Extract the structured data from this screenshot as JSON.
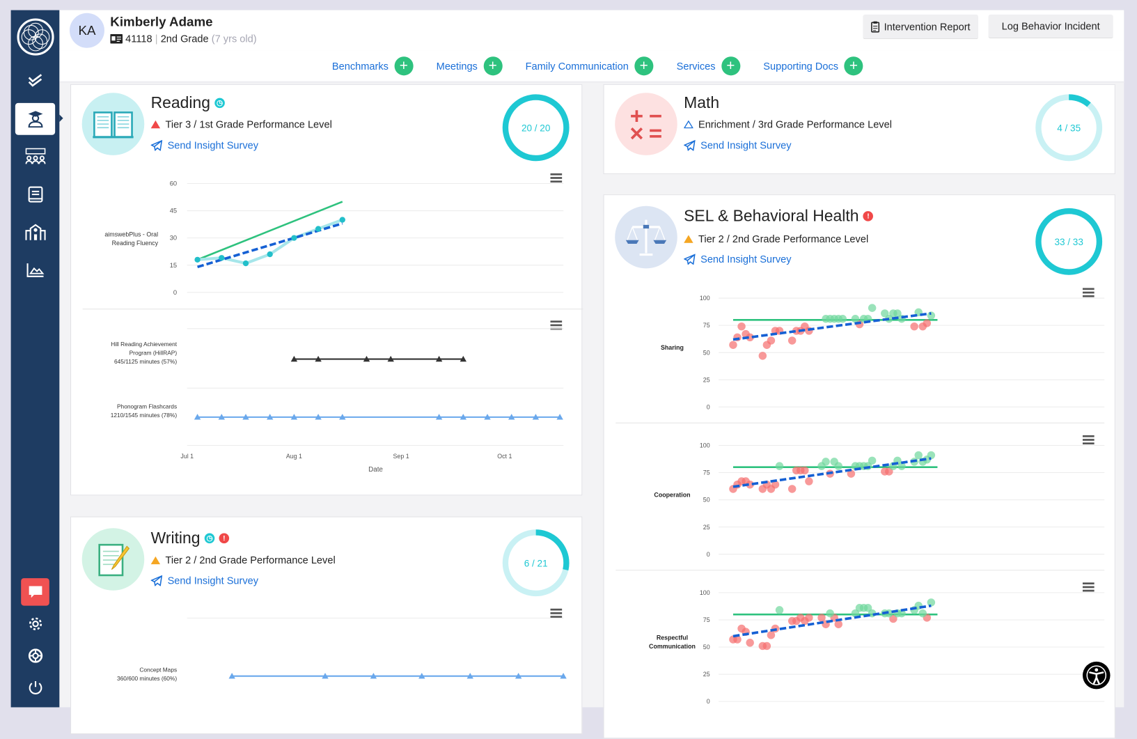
{
  "student": {
    "initials": "KA",
    "name": "Kimberly Adame",
    "id": "41118",
    "grade": "2nd Grade",
    "age": "(7 yrs old)"
  },
  "header_buttons": {
    "intervention_report": "Intervention Report",
    "log_incident": "Log Behavior Incident"
  },
  "tabs": [
    {
      "label": "Benchmarks"
    },
    {
      "label": "Meetings"
    },
    {
      "label": "Family Communication"
    },
    {
      "label": "Services"
    },
    {
      "label": "Supporting Docs"
    }
  ],
  "sidebar": {
    "items": [
      "logo-icon",
      "checklist-icon",
      "student-icon",
      "classroom-icon",
      "book-icon",
      "school-icon",
      "chart-icon"
    ],
    "bottom": [
      "chat-icon",
      "gear-icon",
      "support-icon",
      "power-icon"
    ],
    "active": "student-icon"
  },
  "colors": {
    "sidebar": "#1e3c62",
    "accent_blue": "#1a6fd8",
    "teal": "#1ec8d3",
    "green": "#2ec27e",
    "red": "#f25c5c",
    "orange": "#f5a623",
    "trend": "#1560d4"
  },
  "cards": {
    "reading": {
      "title": "Reading",
      "level": "Tier 3 / 1st Grade Performance Level",
      "survey": "Send Insight Survey",
      "progress": "20 / 20",
      "done": 20,
      "total": 20,
      "tier_icon": "red-triangle",
      "badges": [
        "clock"
      ]
    },
    "math": {
      "title": "Math",
      "level": "Enrichment / 3rd Grade Performance Level",
      "survey": "Send Insight Survey",
      "progress": "4 / 35",
      "done": 4,
      "total": 35,
      "tier_icon": "outline-triangle",
      "badges": []
    },
    "writing": {
      "title": "Writing",
      "level": "Tier 2 / 2nd Grade Performance Level",
      "survey": "Send Insight Survey",
      "progress": "6 / 21",
      "done": 6,
      "total": 21,
      "tier_icon": "orange-triangle",
      "badges": [
        "clock",
        "alert"
      ]
    },
    "sel": {
      "title": "SEL & Behavioral Health",
      "level": "Tier 2 / 2nd Grade Performance Level",
      "survey": "Send Insight Survey",
      "progress": "33 / 33",
      "done": 33,
      "total": 33,
      "tier_icon": "orange-triangle",
      "badges": [
        "alert"
      ]
    }
  },
  "chart_data": [
    {
      "id": "reading-score",
      "type": "line",
      "ylabel": "aimswebPlus - Oral Reading Fluency",
      "ylim": [
        0,
        60
      ],
      "yticks": [
        "0",
        "15",
        "30",
        "45",
        "60"
      ],
      "grid": true,
      "scores": {
        "x": [
          "Jul 4",
          "Jul 11",
          "Jul 18",
          "Jul 25",
          "Aug 1",
          "Aug 8",
          "Aug 15"
        ],
        "y": [
          18,
          19,
          16,
          21,
          30,
          35,
          40
        ]
      },
      "goal_line": {
        "x": [
          "Jul 4",
          "Aug 15"
        ],
        "y": [
          18,
          50
        ]
      },
      "trend_line": {
        "x": [
          "Jul 4",
          "Aug 15"
        ],
        "y": [
          14,
          38
        ]
      }
    },
    {
      "id": "reading-interventions",
      "type": "scatter",
      "xlabel": "Date",
      "xticks": [
        "Jul 1",
        "Aug 1",
        "Sep 1",
        "Oct 1"
      ],
      "rows": [
        {
          "label_lines": [
            "Hill Reading Achievement",
            "Program (HillRAP)",
            "645/1125 minutes (57%)"
          ],
          "color": "#333333",
          "dates": [
            "Aug 1",
            "Aug 8",
            "Aug 22",
            "Aug 29",
            "Sep 12",
            "Sep 19"
          ]
        },
        {
          "label_lines": [
            "Phonogram Flashcards",
            "1210/1545 minutes (78%)"
          ],
          "color": "#6aa8ec",
          "dates": [
            "Jul 4",
            "Jul 11",
            "Jul 18",
            "Jul 25",
            "Aug 1",
            "Aug 8",
            "Aug 15",
            "Sep 12",
            "Sep 19",
            "Sep 26",
            "Oct 3",
            "Oct 10",
            "Oct 17"
          ]
        }
      ]
    },
    {
      "id": "writing-interventions",
      "type": "scatter",
      "rows": [
        {
          "label_lines": [
            "Concept Maps",
            "360/600 minutes (60%)"
          ],
          "color": "#6aa8ec",
          "dates": [
            "Jul 14",
            "Aug 10",
            "Aug 24",
            "Sep 7",
            "Sep 21",
            "Oct 5",
            "Oct 18"
          ]
        }
      ]
    },
    {
      "id": "sel-sharing",
      "type": "scatter",
      "ylabel": "Sharing",
      "ylim": [
        0,
        100
      ],
      "yticks": [
        "0",
        "25",
        "50",
        "75",
        "100"
      ],
      "goal": 80,
      "trend": [
        62,
        86
      ],
      "below_goal": [
        [
          0,
          57
        ],
        [
          1,
          64
        ],
        [
          2,
          74
        ],
        [
          3,
          67
        ],
        [
          4,
          64
        ],
        [
          7,
          47
        ],
        [
          8,
          57
        ],
        [
          9,
          61
        ],
        [
          10,
          70
        ],
        [
          11,
          70
        ],
        [
          14,
          61
        ],
        [
          15,
          70
        ],
        [
          16,
          70
        ],
        [
          17,
          74
        ],
        [
          18,
          70
        ],
        [
          30,
          76
        ],
        [
          43,
          74
        ],
        [
          45,
          74
        ],
        [
          46,
          77
        ]
      ],
      "at_or_above_goal": [
        [
          22,
          81
        ],
        [
          23,
          81
        ],
        [
          24,
          81
        ],
        [
          25,
          81
        ],
        [
          26,
          81
        ],
        [
          29,
          81
        ],
        [
          31,
          81
        ],
        [
          32,
          81
        ],
        [
          33,
          91
        ],
        [
          36,
          86
        ],
        [
          37,
          81
        ],
        [
          38,
          86
        ],
        [
          39,
          86
        ],
        [
          40,
          81
        ],
        [
          44,
          87
        ],
        [
          47,
          84
        ]
      ]
    },
    {
      "id": "sel-cooperation",
      "type": "scatter",
      "ylabel": "Cooperation",
      "ylim": [
        0,
        100
      ],
      "yticks": [
        "0",
        "25",
        "50",
        "75",
        "100"
      ],
      "goal": 80,
      "trend": [
        62,
        88
      ],
      "below_goal": [
        [
          0,
          60
        ],
        [
          1,
          64
        ],
        [
          2,
          67
        ],
        [
          3,
          67
        ],
        [
          4,
          64
        ],
        [
          7,
          60
        ],
        [
          8,
          64
        ],
        [
          9,
          60
        ],
        [
          10,
          64
        ],
        [
          14,
          60
        ],
        [
          15,
          77
        ],
        [
          16,
          77
        ],
        [
          17,
          77
        ],
        [
          18,
          67
        ],
        [
          23,
          74
        ],
        [
          28,
          74
        ],
        [
          36,
          76
        ],
        [
          37,
          76
        ]
      ],
      "at_or_above_goal": [
        [
          11,
          81
        ],
        [
          21,
          81
        ],
        [
          22,
          85
        ],
        [
          24,
          85
        ],
        [
          25,
          81
        ],
        [
          29,
          81
        ],
        [
          30,
          81
        ],
        [
          31,
          81
        ],
        [
          32,
          81
        ],
        [
          33,
          86
        ],
        [
          38,
          81
        ],
        [
          39,
          86
        ],
        [
          40,
          81
        ],
        [
          43,
          85
        ],
        [
          44,
          91
        ],
        [
          45,
          85
        ],
        [
          46,
          87
        ],
        [
          47,
          91
        ]
      ]
    },
    {
      "id": "sel-respectful-communication",
      "type": "scatter",
      "ylabel": "Respectful Communication",
      "ylim": [
        0,
        100
      ],
      "yticks": [
        "0",
        "25",
        "50",
        "75",
        "100"
      ],
      "goal": 80,
      "trend": [
        60,
        88
      ],
      "below_goal": [
        [
          0,
          57
        ],
        [
          1,
          57
        ],
        [
          2,
          67
        ],
        [
          3,
          64
        ],
        [
          4,
          54
        ],
        [
          7,
          51
        ],
        [
          8,
          51
        ],
        [
          9,
          61
        ],
        [
          10,
          67
        ],
        [
          14,
          74
        ],
        [
          15,
          74
        ],
        [
          16,
          77
        ],
        [
          17,
          74
        ],
        [
          18,
          77
        ],
        [
          21,
          77
        ],
        [
          22,
          71
        ],
        [
          24,
          77
        ],
        [
          25,
          71
        ],
        [
          38,
          76
        ],
        [
          46,
          77
        ]
      ],
      "at_or_above_goal": [
        [
          11,
          84
        ],
        [
          23,
          81
        ],
        [
          29,
          81
        ],
        [
          30,
          86
        ],
        [
          31,
          86
        ],
        [
          32,
          86
        ],
        [
          33,
          81
        ],
        [
          36,
          81
        ],
        [
          37,
          81
        ],
        [
          39,
          81
        ],
        [
          40,
          81
        ],
        [
          43,
          84
        ],
        [
          44,
          88
        ],
        [
          45,
          81
        ],
        [
          47,
          91
        ]
      ]
    }
  ]
}
